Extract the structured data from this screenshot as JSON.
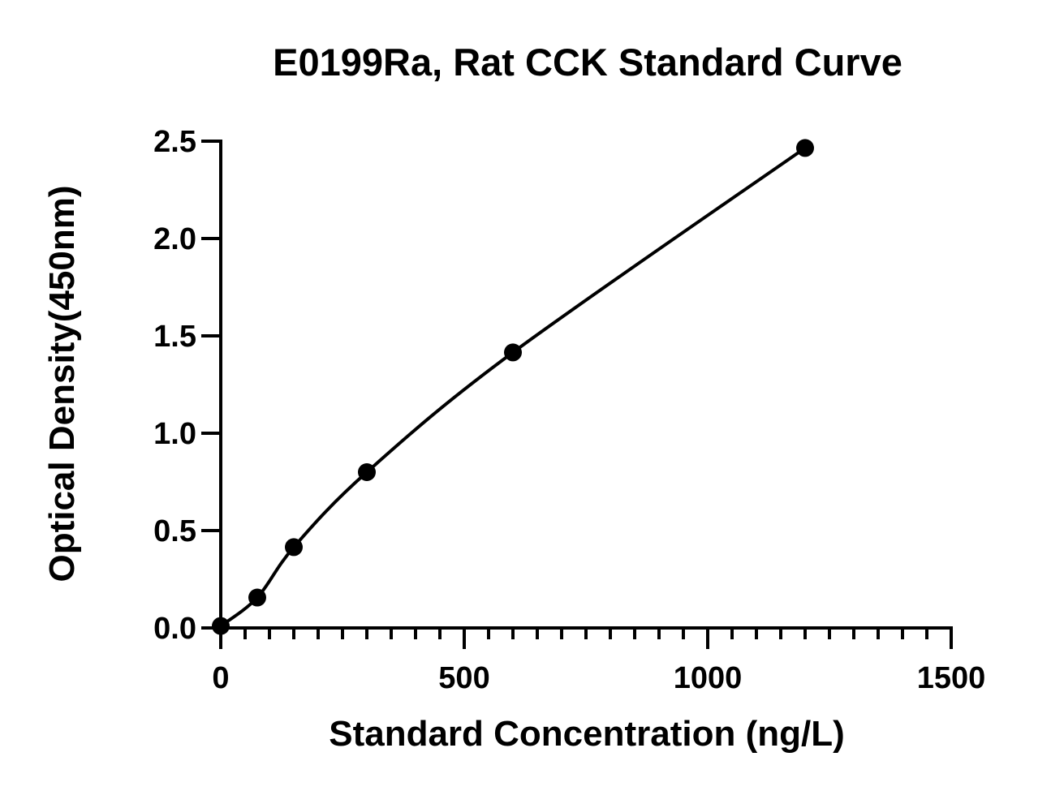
{
  "chart_data": {
    "type": "scatter",
    "title": "E0199Ra, Rat CCK Standard Curve",
    "xlabel": "Standard Concentration (ng/L)",
    "ylabel": "Optical Density(450nm)",
    "xlim": [
      0,
      1500
    ],
    "ylim": [
      0,
      2.5
    ],
    "x_ticks": [
      0,
      500,
      1000,
      1500
    ],
    "x_tick_labels": [
      "0",
      "500",
      "1000",
      "1500"
    ],
    "x_minor_step": 50,
    "y_ticks": [
      0,
      0.5,
      1.0,
      1.5,
      2.0,
      2.5
    ],
    "y_tick_labels": [
      "0.0",
      "0.5",
      "1.0",
      "1.5",
      "2.0",
      "2.5"
    ],
    "grid": false,
    "series": [
      {
        "x": [
          0,
          75,
          150,
          300,
          600,
          1200
        ],
        "y": [
          0.01,
          0.156,
          0.415,
          0.8,
          1.415,
          2.465
        ],
        "marker": "circle",
        "color": "#000000",
        "fit": "smooth-curve"
      }
    ]
  }
}
